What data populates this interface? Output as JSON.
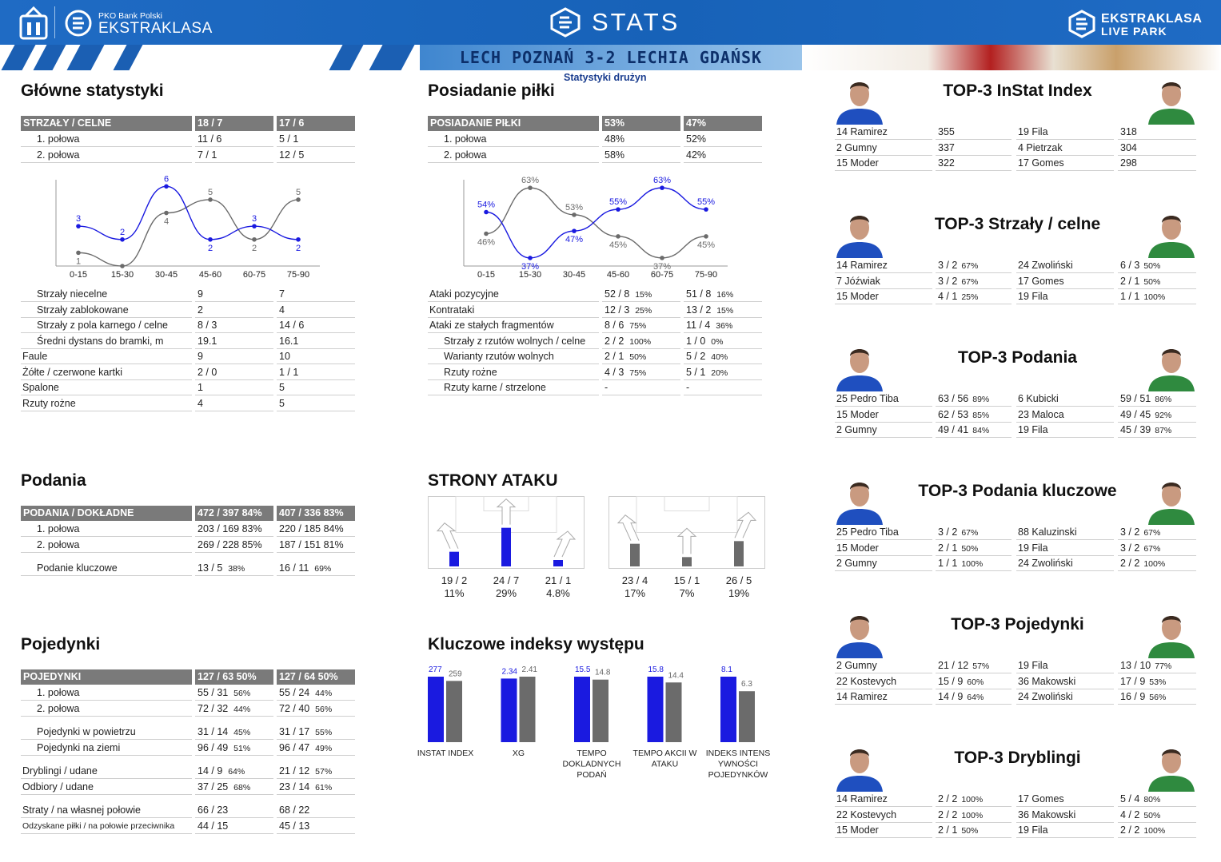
{
  "header": {
    "pko": "PKO Bank Polski",
    "ekstraklasa": "EKSTRAKLASA",
    "stats": "STATS",
    "live1": "EKSTRAKLASA",
    "live2": "LIVE PARK",
    "score": "LECH POZNAŃ 3-2 LECHIA GDAŃSK",
    "subtitle": "Statystyki drużyn"
  },
  "colors": {
    "home": "#1a1ae0",
    "away": "#6b6b6b",
    "header": "#1762b8"
  },
  "main": {
    "title": "Główne statystyki",
    "head": [
      "STRZAŁY / CELNE",
      "18 / 7",
      "17 / 6"
    ],
    "halves": [
      [
        "1. połowa",
        "11 / 6",
        "5 / 1"
      ],
      [
        "2. połowa",
        "7 / 1",
        "12 / 5"
      ]
    ],
    "rows": [
      [
        "Strzały niecelne",
        "9",
        "7"
      ],
      [
        "Strzały zablokowane",
        "2",
        "4"
      ],
      [
        "Strzały z pola karnego / celne",
        "8 / 3",
        "14 / 6"
      ],
      [
        "Średni dystans do bramki, m",
        "19.1",
        "16.1"
      ],
      [
        "Faule",
        "9",
        "10"
      ],
      [
        "Żółte / czerwone kartki",
        "2 / 0",
        "1 / 1"
      ],
      [
        "Spalone",
        "1",
        "5"
      ],
      [
        "Rzuty rożne",
        "4",
        "5"
      ]
    ]
  },
  "possession": {
    "title": "Posiadanie piłki",
    "head": [
      "POSIADANIE PIŁKI",
      "53%",
      "47%"
    ],
    "halves": [
      [
        "1. połowa",
        "48%",
        "52%"
      ],
      [
        "2. połowa",
        "58%",
        "42%"
      ]
    ],
    "rows": [
      [
        "Ataki pozycyjne",
        "52 / 8",
        "15%",
        "51 / 8",
        "16%"
      ],
      [
        "Kontrataki",
        "12 / 3",
        "25%",
        "13 / 2",
        "15%"
      ],
      [
        "Ataki ze stałych fragmentów",
        "8 / 6",
        "75%",
        "11 / 4",
        "36%"
      ],
      [
        "Strzały z rzutów wolnych / celne",
        "2 / 2",
        "100%",
        "1 / 0",
        "0%"
      ],
      [
        "Warianty rzutów wolnych",
        "2 / 1",
        "50%",
        "5 / 2",
        "40%"
      ],
      [
        "Rzuty rożne",
        "4 / 3",
        "75%",
        "5 / 1",
        "20%"
      ],
      [
        "Rzuty karne / strzelone",
        "-",
        "",
        "-",
        ""
      ]
    ]
  },
  "chart_data": [
    {
      "type": "line",
      "x": [
        "0-15",
        "15-30",
        "30-45",
        "45-60",
        "60-75",
        "75-90"
      ],
      "series": [
        {
          "values": [
            3,
            2,
            6,
            2,
            3,
            2
          ]
        },
        {
          "values": [
            1,
            0,
            4,
            5,
            2,
            5
          ]
        }
      ],
      "point_labels": [
        [
          "3",
          "2",
          "6",
          "2",
          "3",
          "2"
        ],
        [
          "1",
          "",
          "4",
          "5",
          "2",
          "5"
        ]
      ],
      "ylim": [
        0,
        6.5
      ]
    },
    {
      "type": "line",
      "x": [
        "0-15",
        "15-30",
        "30-45",
        "45-60",
        "60-75",
        "75-90"
      ],
      "series": [
        {
          "values": [
            54,
            37,
            47,
            55,
            63,
            55
          ]
        },
        {
          "values": [
            46,
            63,
            53,
            45,
            37,
            45
          ]
        }
      ],
      "point_labels": [
        [
          "54%",
          "37%",
          "47%",
          "55%",
          "63%",
          "55%"
        ],
        [
          "46%",
          "63%",
          "53%",
          "45%",
          "37%",
          "45%"
        ]
      ],
      "ylim": [
        34,
        66
      ]
    },
    {
      "type": "bar",
      "categories": [
        "INSTAT INDEX",
        "XG",
        "TEMPO DOKLADNYCH PODAŃ",
        "TEMPO AKCII W ATAKU",
        "INDEKS INTENS YWNOŚCI POJEDYNKÓW"
      ],
      "series": [
        {
          "values": [
            277,
            2.34,
            15.5,
            15.8,
            8.1
          ]
        },
        {
          "values": [
            259,
            2.41,
            14.8,
            14.4,
            6.3
          ]
        }
      ],
      "value_labels": [
        [
          "277",
          "2.34",
          "15.5",
          "15.8",
          "8.1"
        ],
        [
          "259",
          "2.41",
          "14.8",
          "14.4",
          "6.3"
        ]
      ]
    }
  ],
  "passes": {
    "title": "Podania",
    "head": [
      "PODANIA / DOKŁADNE",
      "472 / 397 84%",
      "407 / 336 83%"
    ],
    "rows": [
      [
        "1. połowa",
        "203 / 169 83%",
        "220 / 185 84%"
      ],
      [
        "2. połowa",
        "269 / 228 85%",
        "187 / 151 81%"
      ]
    ],
    "key": [
      "Podanie kluczowe",
      "13 / 5",
      "38%",
      "16 / 11",
      "69%"
    ]
  },
  "attack": {
    "title": "STRONY ATAKU",
    "home": [
      [
        "19 / 2",
        "11%"
      ],
      [
        "24 / 7",
        "29%"
      ],
      [
        "21 / 1",
        "4.8%"
      ]
    ],
    "away": [
      [
        "23 / 4",
        "17%"
      ],
      [
        "15 / 1",
        "7%"
      ],
      [
        "26 / 5",
        "19%"
      ]
    ],
    "home_fill": [
      0.11,
      0.29,
      0.048
    ],
    "away_fill": [
      0.17,
      0.07,
      0.19
    ]
  },
  "duels": {
    "title": "Pojedynki",
    "head": [
      "POJEDYNKI",
      "127 / 63 50%",
      "127 / 64 50%"
    ],
    "rows": [
      [
        "1. połowa",
        "55 / 31",
        "56%",
        "55 / 24",
        "44%"
      ],
      [
        "2. połowa",
        "72 / 32",
        "44%",
        "72 / 40",
        "56%"
      ],
      [
        "Pojedynki w powietrzu",
        "31 / 14",
        "45%",
        "31 / 17",
        "55%"
      ],
      [
        "Pojedynki na ziemi",
        "96 / 49",
        "51%",
        "96 / 47",
        "49%"
      ],
      [
        "Dryblingi / udane",
        "14 / 9",
        "64%",
        "21 / 12",
        "57%"
      ],
      [
        "Odbiory / udane",
        "37 / 25",
        "68%",
        "23 / 14",
        "61%"
      ],
      [
        "Straty / na własnej połowie",
        "66 / 23",
        "",
        "68 / 22",
        ""
      ],
      [
        "Odzyskane piłki / na połowie przeciwnika",
        "44 / 15",
        "",
        "45 / 13",
        ""
      ]
    ]
  },
  "kpi": {
    "title": "Kluczowe indeksy występu"
  },
  "tops": [
    {
      "title": "TOP-3 InStat Index",
      "rows": [
        [
          "14 Ramirez",
          "355",
          "",
          "19 Fila",
          "318",
          ""
        ],
        [
          "2  Gumny",
          "337",
          "",
          "4  Pietrzak",
          "304",
          ""
        ],
        [
          "15 Moder",
          "322",
          "",
          "17 Gomes",
          "298",
          ""
        ]
      ]
    },
    {
      "title": "TOP-3 Strzały / celne",
      "rows": [
        [
          "14 Ramirez",
          "3 / 2",
          "67%",
          "24 Zwoliński",
          "6 / 3",
          "50%"
        ],
        [
          "7  Jóźwiak",
          "3 / 2",
          "67%",
          "17 Gomes",
          "2 / 1",
          "50%"
        ],
        [
          "15 Moder",
          "4 / 1",
          "25%",
          "19 Fila",
          "1 / 1",
          "100%"
        ]
      ]
    },
    {
      "title": "TOP-3 Podania",
      "rows": [
        [
          "25 Pedro Tiba",
          "63 / 56",
          "89%",
          "6  Kubicki",
          "59 / 51",
          "86%"
        ],
        [
          "15 Moder",
          "62 / 53",
          "85%",
          "23 Maloca",
          "49 / 45",
          "92%"
        ],
        [
          "2  Gumny",
          "49 / 41",
          "84%",
          "19 Fila",
          "45 / 39",
          "87%"
        ]
      ]
    },
    {
      "title": "TOP-3 Podania kluczowe",
      "rows": [
        [
          "25 Pedro Tiba",
          "3 / 2",
          "67%",
          "88 Kaluzinski",
          "3 / 2",
          "67%"
        ],
        [
          "15 Moder",
          "2 / 1",
          "50%",
          "19 Fila",
          "3 / 2",
          "67%"
        ],
        [
          "2  Gumny",
          "1 / 1",
          "100%",
          "24 Zwoliński",
          "2 / 2",
          "100%"
        ]
      ]
    },
    {
      "title": "TOP-3 Pojedynki",
      "rows": [
        [
          "2  Gumny",
          "21 / 12",
          "57%",
          "19 Fila",
          "13 / 10",
          "77%"
        ],
        [
          "22 Kostevych",
          "15 / 9",
          "60%",
          "36 Makowski",
          "17 / 9",
          "53%"
        ],
        [
          "14 Ramirez",
          "14 / 9",
          "64%",
          "24 Zwoliński",
          "16 / 9",
          "56%"
        ]
      ]
    },
    {
      "title": "TOP-3 Dryblingi",
      "rows": [
        [
          "14 Ramirez",
          "2 / 2",
          "100%",
          "17 Gomes",
          "5 / 4",
          "80%"
        ],
        [
          "22 Kostevych",
          "2 / 2",
          "100%",
          "36 Makowski",
          "4 / 2",
          "50%"
        ],
        [
          "15 Moder",
          "2 / 1",
          "50%",
          "19 Fila",
          "2 / 2",
          "100%"
        ]
      ]
    }
  ]
}
